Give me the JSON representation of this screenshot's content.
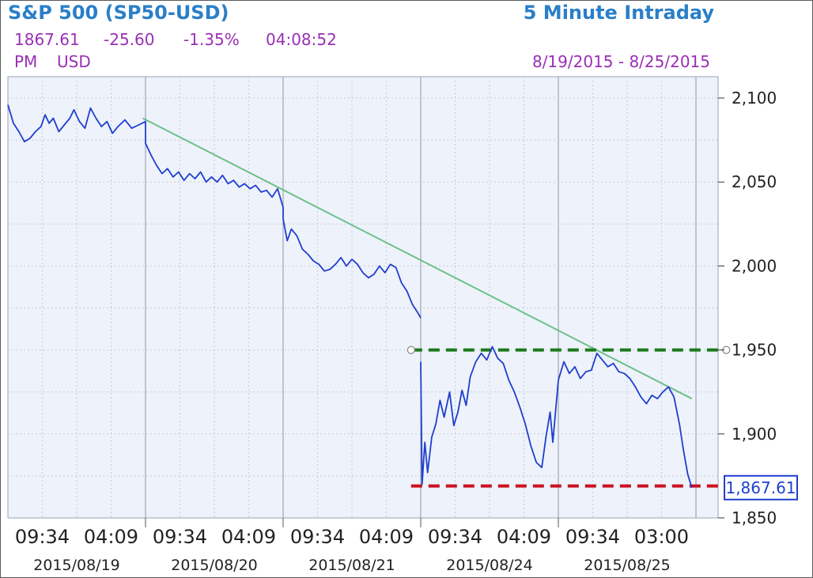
{
  "header": {
    "symbol_title": "S&P 500 (SP50-USD)",
    "interval_title": "5 Minute Intraday",
    "last_price": "1867.61",
    "change": "-25.60",
    "change_pct": "-1.35%",
    "time": "04:08:52",
    "ampm": "PM",
    "currency": "USD",
    "date_range": "8/19/2015 - 8/25/2015"
  },
  "colors": {
    "title": "#2a7fc8",
    "quote": "#9a2fb5",
    "price_line": "#1f3fcf",
    "trend_line": "#6cc08a",
    "resistance": "#1a7a1a",
    "support": "#cc1020"
  },
  "chart_data": {
    "type": "line",
    "title": "S&P 500 (SP50-USD) 5 Minute Intraday",
    "ylim": [
      1850,
      2100
    ],
    "y_ticks": [
      1850,
      1900,
      1950,
      2000,
      2050,
      2100
    ],
    "y_tick_labels": [
      "1,850",
      "1,900",
      "1,950",
      "2,000",
      "2,050",
      "2,100"
    ],
    "y_axis_position": "right",
    "grid": true,
    "x_time_labels": [
      "09:34",
      "04:09",
      "09:34",
      "04:09",
      "09:34",
      "04:09",
      "09:34",
      "04:09",
      "09:34",
      "03:00"
    ],
    "x_date_labels": [
      "2015/08/19",
      "2015/08/20",
      "2015/08/21",
      "2015/08/24",
      "2015/08/25"
    ],
    "last_price_label": "1,867.61",
    "series": [
      {
        "values": [
          [
            0.0,
            2096
          ],
          [
            0.04,
            2085
          ],
          [
            0.08,
            2080
          ],
          [
            0.12,
            2074
          ],
          [
            0.16,
            2076
          ],
          [
            0.2,
            2080
          ],
          [
            0.24,
            2083
          ],
          [
            0.27,
            2090
          ],
          [
            0.3,
            2085
          ],
          [
            0.33,
            2088
          ],
          [
            0.37,
            2080
          ],
          [
            0.41,
            2084
          ],
          [
            0.45,
            2088
          ],
          [
            0.48,
            2093
          ],
          [
            0.52,
            2086
          ],
          [
            0.56,
            2082
          ],
          [
            0.6,
            2094
          ],
          [
            0.64,
            2088
          ],
          [
            0.68,
            2083
          ],
          [
            0.72,
            2086
          ],
          [
            0.76,
            2079
          ],
          [
            0.8,
            2083
          ],
          [
            0.85,
            2087
          ],
          [
            0.9,
            2082
          ],
          [
            0.95,
            2084
          ],
          [
            1.0,
            2086
          ],
          [
            1.0,
            2073
          ],
          [
            1.04,
            2066
          ],
          [
            1.08,
            2060
          ],
          [
            1.12,
            2055
          ],
          [
            1.16,
            2058
          ],
          [
            1.2,
            2053
          ],
          [
            1.24,
            2056
          ],
          [
            1.28,
            2051
          ],
          [
            1.32,
            2055
          ],
          [
            1.36,
            2052
          ],
          [
            1.4,
            2056
          ],
          [
            1.44,
            2050
          ],
          [
            1.48,
            2053
          ],
          [
            1.52,
            2050
          ],
          [
            1.56,
            2054
          ],
          [
            1.6,
            2049
          ],
          [
            1.64,
            2051
          ],
          [
            1.68,
            2047
          ],
          [
            1.72,
            2049
          ],
          [
            1.76,
            2046
          ],
          [
            1.8,
            2048
          ],
          [
            1.84,
            2044
          ],
          [
            1.88,
            2045
          ],
          [
            1.92,
            2041
          ],
          [
            1.96,
            2046
          ],
          [
            2.0,
            2035
          ],
          [
            2.0,
            2028
          ],
          [
            2.03,
            2015
          ],
          [
            2.06,
            2022
          ],
          [
            2.1,
            2018
          ],
          [
            2.14,
            2010
          ],
          [
            2.18,
            2007
          ],
          [
            2.22,
            2003
          ],
          [
            2.26,
            2001
          ],
          [
            2.3,
            1997
          ],
          [
            2.34,
            1998
          ],
          [
            2.38,
            2001
          ],
          [
            2.42,
            2005
          ],
          [
            2.46,
            2000
          ],
          [
            2.5,
            2004
          ],
          [
            2.54,
            2001
          ],
          [
            2.58,
            1996
          ],
          [
            2.62,
            1993
          ],
          [
            2.66,
            1995
          ],
          [
            2.7,
            2000
          ],
          [
            2.74,
            1996
          ],
          [
            2.78,
            2001
          ],
          [
            2.82,
            1999
          ],
          [
            2.86,
            1990
          ],
          [
            2.9,
            1985
          ],
          [
            2.94,
            1977
          ],
          [
            2.98,
            1972
          ],
          [
            3.0,
            1969
          ],
          [
            3.0,
            1943
          ],
          [
            3.01,
            1870
          ],
          [
            3.03,
            1895
          ],
          [
            3.05,
            1877
          ],
          [
            3.08,
            1898
          ],
          [
            3.11,
            1906
          ],
          [
            3.14,
            1920
          ],
          [
            3.17,
            1910
          ],
          [
            3.21,
            1925
          ],
          [
            3.24,
            1905
          ],
          [
            3.27,
            1913
          ],
          [
            3.3,
            1926
          ],
          [
            3.33,
            1917
          ],
          [
            3.36,
            1934
          ],
          [
            3.4,
            1943
          ],
          [
            3.44,
            1948
          ],
          [
            3.48,
            1944
          ],
          [
            3.52,
            1952
          ],
          [
            3.56,
            1945
          ],
          [
            3.6,
            1942
          ],
          [
            3.64,
            1932
          ],
          [
            3.68,
            1925
          ],
          [
            3.72,
            1916
          ],
          [
            3.76,
            1906
          ],
          [
            3.8,
            1893
          ],
          [
            3.84,
            1883
          ],
          [
            3.88,
            1880
          ],
          [
            3.91,
            1898
          ],
          [
            3.94,
            1913
          ],
          [
            3.96,
            1895
          ],
          [
            4.0,
            1932
          ],
          [
            4.04,
            1943
          ],
          [
            4.08,
            1936
          ],
          [
            4.12,
            1940
          ],
          [
            4.16,
            1933
          ],
          [
            4.2,
            1937
          ],
          [
            4.24,
            1938
          ],
          [
            4.28,
            1948
          ],
          [
            4.32,
            1944
          ],
          [
            4.36,
            1940
          ],
          [
            4.4,
            1942
          ],
          [
            4.44,
            1937
          ],
          [
            4.48,
            1936
          ],
          [
            4.52,
            1933
          ],
          [
            4.56,
            1928
          ],
          [
            4.6,
            1922
          ],
          [
            4.64,
            1918
          ],
          [
            4.68,
            1923
          ],
          [
            4.72,
            1921
          ],
          [
            4.76,
            1925
          ],
          [
            4.8,
            1928
          ],
          [
            4.84,
            1922
          ],
          [
            4.88,
            1906
          ],
          [
            4.91,
            1890
          ],
          [
            4.94,
            1876
          ],
          [
            4.97,
            1868
          ]
        ]
      }
    ],
    "annotations": [
      {
        "type": "trend_line",
        "from": [
          0.98,
          2088
        ],
        "to": [
          4.97,
          1921
        ]
      },
      {
        "type": "horizontal_dashed",
        "value": 1950,
        "from_x": 2.93,
        "to_x": 5.22,
        "label": "resistance"
      },
      {
        "type": "horizontal_dashed",
        "value": 1869,
        "from_x": 2.93,
        "to_x": 5.22,
        "label": "support"
      }
    ]
  }
}
